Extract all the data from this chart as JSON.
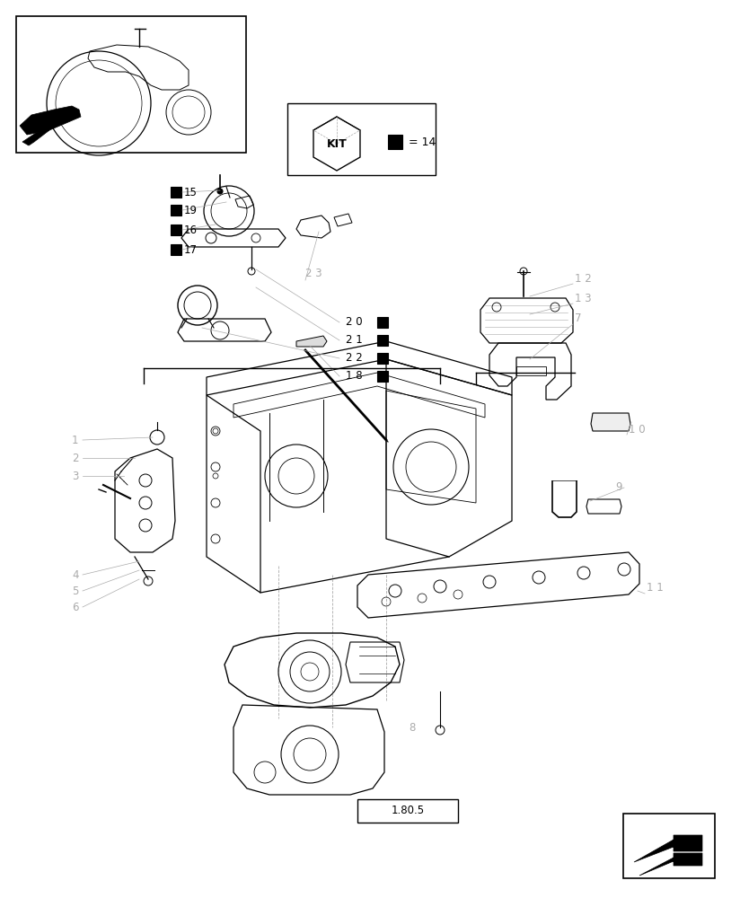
{
  "bg_color": "#ffffff",
  "lc": "#000000",
  "glc": "#aaaaaa",
  "fig_width": 8.24,
  "fig_height": 10.0,
  "dpi": 100,
  "kit_text": "KIT",
  "kit_eq": "= 14",
  "ref_code": "1.80.5"
}
